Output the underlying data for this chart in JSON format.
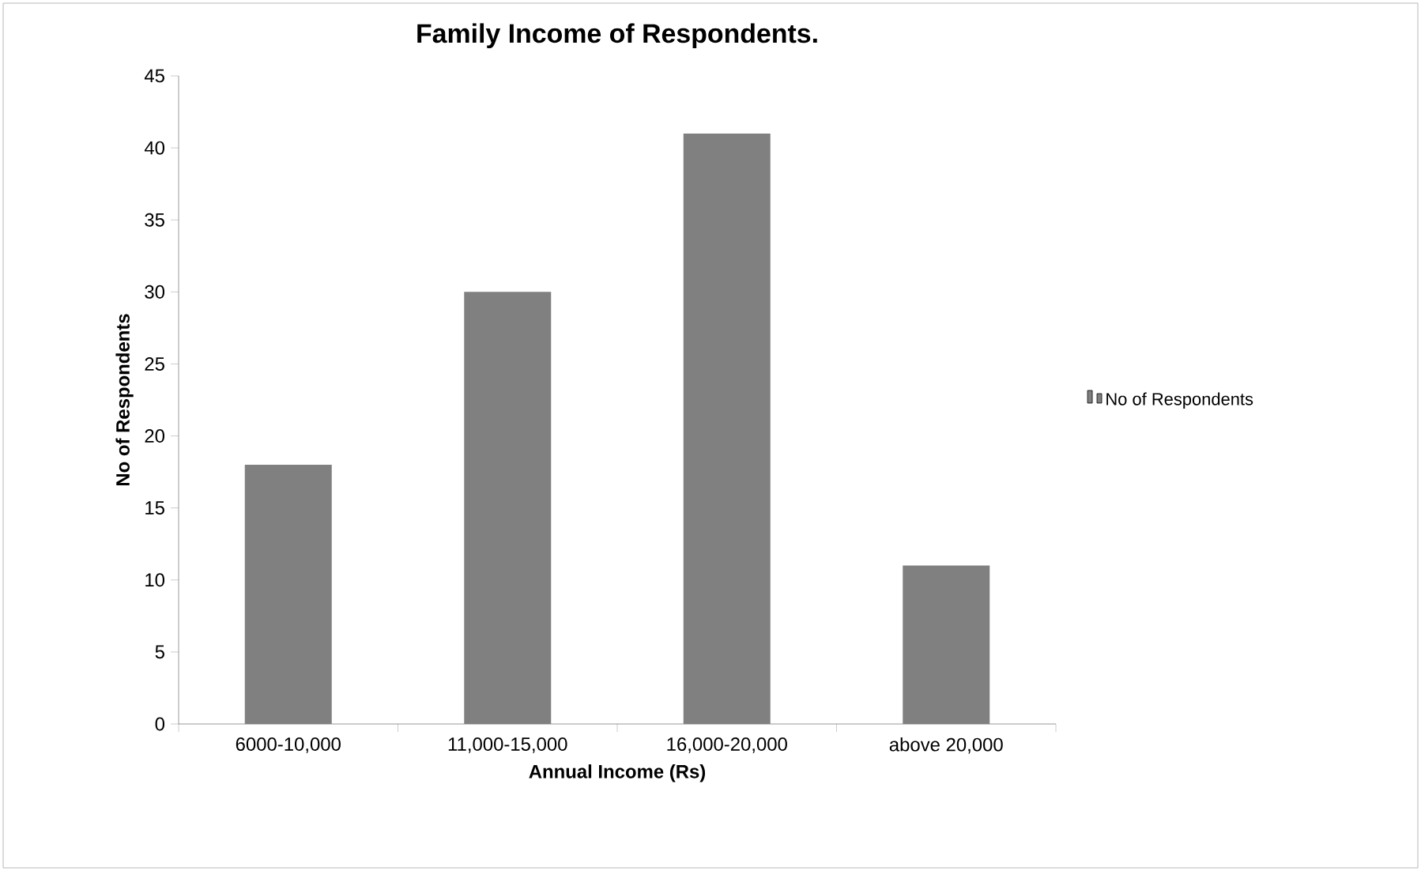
{
  "chart_data": {
    "type": "bar",
    "title": "Family Income of Respondents.",
    "xlabel": "Annual Income (Rs)",
    "ylabel": "No of Respondents",
    "categories": [
      "6000-10,000",
      "11,000-15,000",
      "16,000-20,000",
      "above 20,000"
    ],
    "series": [
      {
        "name": "No of Respondents",
        "color": "#808080",
        "values": [
          18,
          30,
          41,
          11
        ]
      }
    ],
    "ylim": [
      0,
      45
    ],
    "yticks": [
      0,
      5,
      10,
      15,
      20,
      25,
      30,
      35,
      40,
      45
    ],
    "legend": "right"
  }
}
